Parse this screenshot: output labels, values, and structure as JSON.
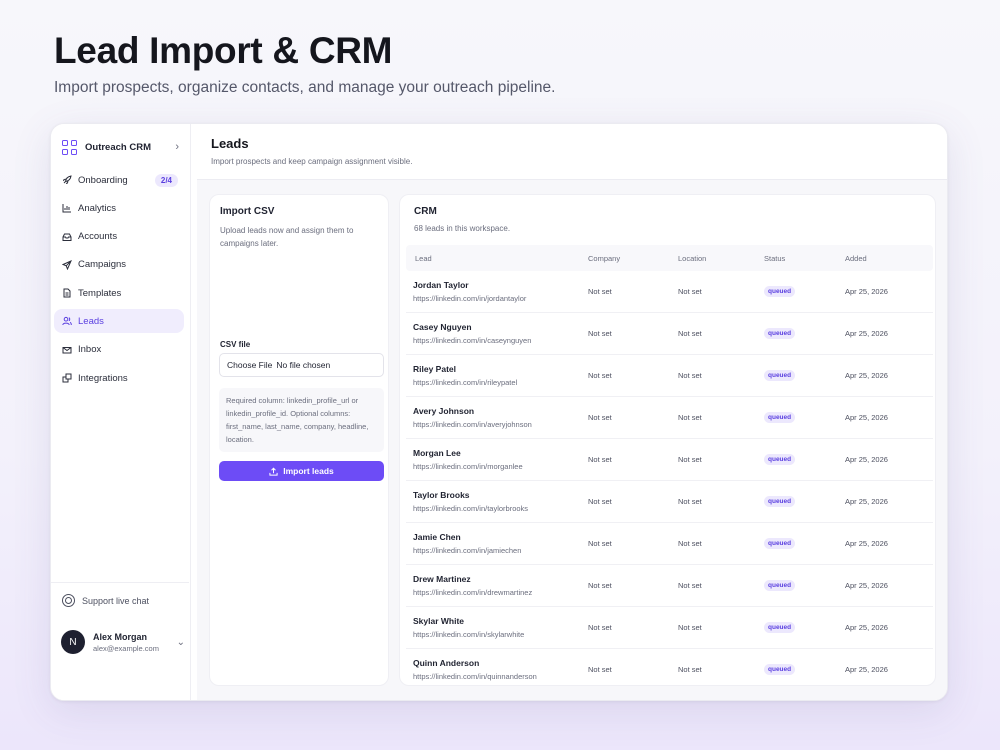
{
  "hero": {
    "title": "Lead Import & CRM",
    "subtitle": "Import prospects, organize contacts, and manage your outreach pipeline."
  },
  "sidebar": {
    "brand": "Outreach CRM",
    "items": [
      {
        "label": "Onboarding",
        "icon": "rocket-icon",
        "badge": "2/4"
      },
      {
        "label": "Analytics",
        "icon": "bar-chart-icon"
      },
      {
        "label": "Accounts",
        "icon": "inbox-tray-icon"
      },
      {
        "label": "Campaigns",
        "icon": "send-icon"
      },
      {
        "label": "Templates",
        "icon": "document-icon"
      },
      {
        "label": "Leads",
        "icon": "users-icon",
        "active": true
      },
      {
        "label": "Inbox",
        "icon": "mail-icon"
      },
      {
        "label": "Integrations",
        "icon": "puzzle-icon"
      }
    ],
    "support": "Support live chat",
    "user": {
      "initial": "N",
      "name": "Alex Morgan",
      "email": "alex@example.com"
    }
  },
  "main": {
    "title": "Leads",
    "subtitle": "Import prospects and keep campaign assignment visible."
  },
  "import": {
    "title": "Import CSV",
    "description": "Upload leads now and assign them to campaigns later.",
    "file_label": "CSV file",
    "file_button": "Choose File",
    "file_status": "No file chosen",
    "help": "Required column: linkedin_profile_url or linkedin_profile_id. Optional columns: first_name, last_name, company, headline, location.",
    "button": "Import leads"
  },
  "crm": {
    "title": "CRM",
    "subtitle": "68 leads in this workspace.",
    "columns": [
      "Lead",
      "Company",
      "Location",
      "Status",
      "Added"
    ],
    "rows": [
      {
        "name": "Jordan Taylor",
        "url": "https://linkedin.com/in/jordantaylor",
        "company": "Not set",
        "location": "Not set",
        "status": "queued",
        "added": "Apr 25, 2026"
      },
      {
        "name": "Casey Nguyen",
        "url": "https://linkedin.com/in/caseynguyen",
        "company": "Not set",
        "location": "Not set",
        "status": "queued",
        "added": "Apr 25, 2026"
      },
      {
        "name": "Riley Patel",
        "url": "https://linkedin.com/in/rileypatel",
        "company": "Not set",
        "location": "Not set",
        "status": "queued",
        "added": "Apr 25, 2026"
      },
      {
        "name": "Avery Johnson",
        "url": "https://linkedin.com/in/averyjohnson",
        "company": "Not set",
        "location": "Not set",
        "status": "queued",
        "added": "Apr 25, 2026"
      },
      {
        "name": "Morgan Lee",
        "url": "https://linkedin.com/in/morganlee",
        "company": "Not set",
        "location": "Not set",
        "status": "queued",
        "added": "Apr 25, 2026"
      },
      {
        "name": "Taylor Brooks",
        "url": "https://linkedin.com/in/taylorbrooks",
        "company": "Not set",
        "location": "Not set",
        "status": "queued",
        "added": "Apr 25, 2026"
      },
      {
        "name": "Jamie Chen",
        "url": "https://linkedin.com/in/jamiechen",
        "company": "Not set",
        "location": "Not set",
        "status": "queued",
        "added": "Apr 25, 2026"
      },
      {
        "name": "Drew Martinez",
        "url": "https://linkedin.com/in/drewmartinez",
        "company": "Not set",
        "location": "Not set",
        "status": "queued",
        "added": "Apr 25, 2026"
      },
      {
        "name": "Skylar White",
        "url": "https://linkedin.com/in/skylarwhite",
        "company": "Not set",
        "location": "Not set",
        "status": "queued",
        "added": "Apr 25, 2026"
      },
      {
        "name": "Quinn Anderson",
        "url": "https://linkedin.com/in/quinnanderson",
        "company": "Not set",
        "location": "Not set",
        "status": "queued",
        "added": "Apr 25, 2026"
      }
    ]
  },
  "colors": {
    "accent": "#6d4cf6",
    "accent_soft": "#ece8fd"
  }
}
